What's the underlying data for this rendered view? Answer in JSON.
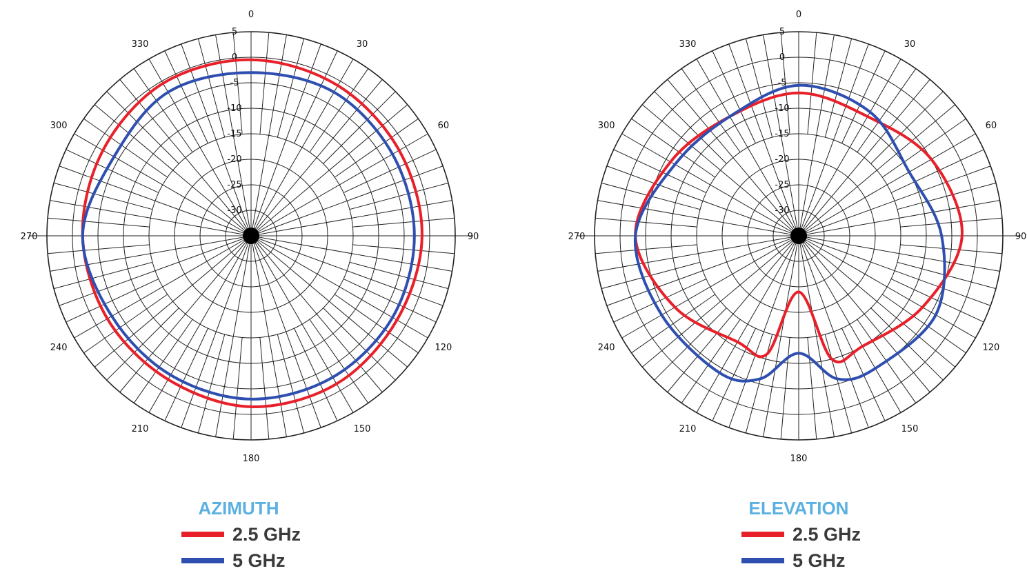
{
  "chart_data": [
    {
      "type": "polar-line",
      "title": "AZIMUTH",
      "angle_ticks": [
        "0",
        "30",
        "60",
        "90",
        "120",
        "150",
        "180",
        "210",
        "240",
        "270",
        "300",
        "330"
      ],
      "radial_labels": [
        "5",
        "0",
        "-5",
        "-10",
        "-15",
        "-20",
        "-25",
        "-30"
      ],
      "rlim": [
        -35,
        5
      ],
      "series": [
        {
          "name": "2.5 GHz",
          "color": "#e8202a",
          "angles": [
            0,
            30,
            60,
            90,
            120,
            150,
            180,
            210,
            240,
            270,
            300,
            330
          ],
          "values": [
            -0.5,
            -1,
            -1.5,
            -1.5,
            -2,
            -1.5,
            -1.5,
            -2.5,
            -2.5,
            -2,
            -1.5,
            -0.5
          ]
        },
        {
          "name": "5 GHz",
          "color": "#2f4fb0",
          "angles": [
            0,
            30,
            60,
            90,
            120,
            150,
            180,
            210,
            240,
            270,
            300,
            330
          ],
          "values": [
            -3,
            -2.5,
            -3,
            -3,
            -3,
            -3,
            -3,
            -3.5,
            -3.5,
            -2,
            -4,
            -2.5
          ]
        }
      ]
    },
    {
      "type": "polar-line",
      "title": "ELEVATION",
      "angle_ticks": [
        "0",
        "30",
        "60",
        "90",
        "120",
        "150",
        "180",
        "210",
        "240",
        "270",
        "300",
        "330"
      ],
      "radial_labels": [
        "5",
        "0",
        "-5",
        "-10",
        "-15",
        "-20",
        "-25",
        "-30"
      ],
      "rlim": [
        -35,
        5
      ],
      "series": [
        {
          "name": "2.5 GHz",
          "color": "#e8202a",
          "angles": [
            0,
            30,
            60,
            90,
            120,
            150,
            165,
            180,
            195,
            210,
            240,
            270,
            300,
            330
          ],
          "values": [
            -7,
            -8,
            -5,
            -3,
            -7,
            -10,
            -10,
            -24,
            -11,
            -11,
            -7,
            -3,
            -6,
            -8
          ]
        },
        {
          "name": "5 GHz",
          "color": "#2f4fb0",
          "angles": [
            0,
            30,
            60,
            90,
            120,
            150,
            165,
            180,
            195,
            210,
            240,
            270,
            300,
            330
          ],
          "values": [
            -5.5,
            -7,
            -10,
            -7,
            -4,
            -5,
            -6,
            -12,
            -6,
            -4,
            -4,
            -3,
            -7,
            -8
          ]
        }
      ]
    }
  ],
  "legend": [
    {
      "label": "2.5 GHz",
      "color": "#e8202a"
    },
    {
      "label": "5 GHz",
      "color": "#2f4fb0"
    }
  ]
}
